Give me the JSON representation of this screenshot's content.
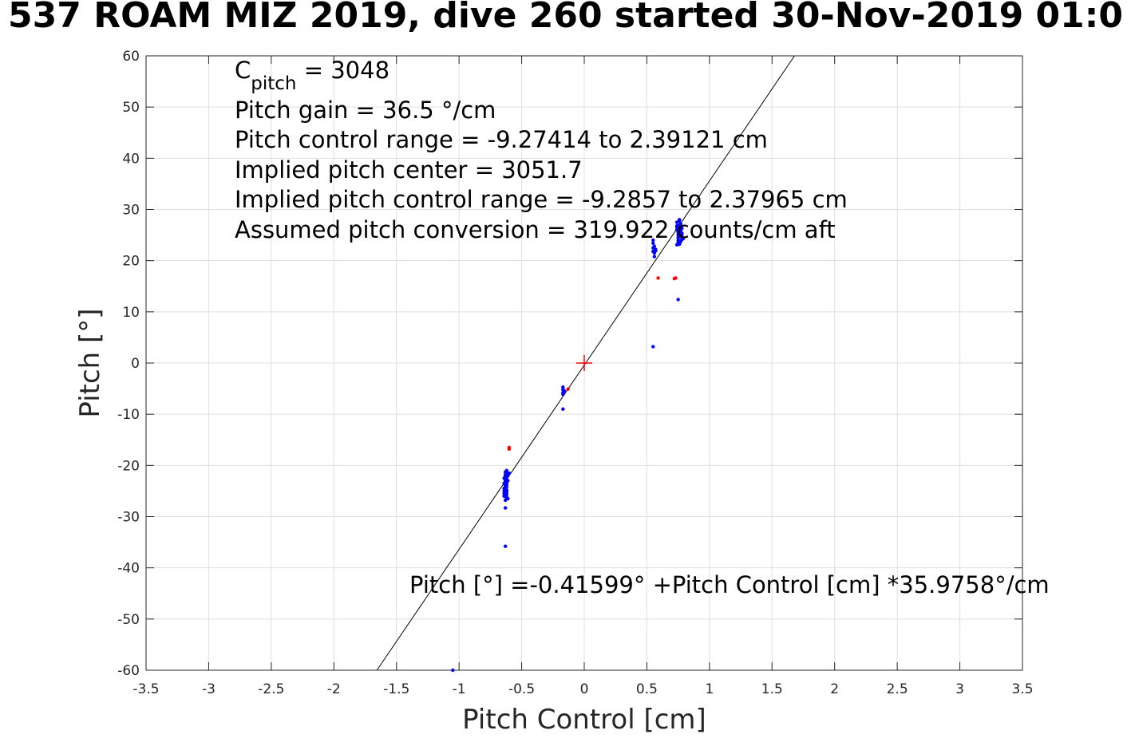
{
  "chart_data": {
    "type": "scatter",
    "title": "537 ROAM MIZ 2019, dive 260 started 30-Nov-2019 01:0",
    "xlabel": "Pitch Control [cm]",
    "ylabel": "Pitch [°]",
    "xlim": [
      -3.5,
      3.5
    ],
    "ylim": [
      -60,
      60
    ],
    "xticks": [
      -3.5,
      -3,
      -2.5,
      -2,
      -1.5,
      -1,
      -0.5,
      0,
      0.5,
      1,
      1.5,
      2,
      2.5,
      3,
      3.5
    ],
    "xtick_labels": [
      "-3.5",
      "-3",
      "-2.5",
      "-2",
      "-1.5",
      "-1",
      "-0.5",
      "0",
      "0.5",
      "1",
      "1.5",
      "2",
      "2.5",
      "3",
      "3.5"
    ],
    "yticks": [
      -60,
      -50,
      -40,
      -30,
      -20,
      -10,
      0,
      10,
      20,
      30,
      40,
      50,
      60
    ],
    "ytick_labels": [
      "-60",
      "-50",
      "-40",
      "-30",
      "-20",
      "-10",
      "0",
      "10",
      "20",
      "30",
      "40",
      "50",
      "60"
    ],
    "grid": true,
    "annotations": {
      "c_pitch_main": "C",
      "c_pitch_sub": "pitch",
      "c_pitch_value": " = 3048",
      "lines": [
        "Pitch gain = 36.5 °/cm",
        "Pitch control range = -9.27414 to 2.39121 cm",
        "Implied pitch center = 3051.7",
        "Implied pitch control range = -9.2857 to 2.37965 cm",
        "Assumed pitch conversion = 319.922 counts/cm aft"
      ],
      "fit_equation": "Pitch [°] =-0.41599° +Pitch Control [cm] *35.9758°/cm"
    },
    "fit_line": {
      "intercept": -0.41599,
      "slope": 35.9758,
      "color": "#000000"
    },
    "center_marker": {
      "x": 0,
      "y": 0,
      "color": "#ff0000"
    },
    "series": [
      {
        "color": "#0000ff",
        "x": [
          -0.62,
          -0.62,
          -0.63,
          -0.63,
          -0.63,
          -0.63,
          -0.63,
          -0.63,
          -0.62,
          -0.62,
          -0.62,
          -0.61,
          -0.61,
          -0.61,
          -0.6,
          -0.64,
          -0.64,
          -0.64,
          -0.64,
          -0.64,
          -0.64,
          -0.63,
          -0.63,
          -0.63,
          -0.63,
          -0.63,
          -0.62,
          -0.62,
          -0.62,
          -0.62,
          -0.62,
          -0.62,
          -0.62,
          -0.62,
          -0.62,
          -0.63,
          -0.63,
          -0.63,
          -0.17,
          -0.17,
          -0.17,
          -0.17,
          -0.16,
          -0.17,
          0.55,
          0.55,
          0.56,
          0.56,
          0.56,
          0.57,
          0.57,
          0.55,
          0.55,
          0.74,
          0.74,
          0.74,
          0.75,
          0.75,
          0.75,
          0.75,
          0.76,
          0.76,
          0.76,
          0.76,
          0.77,
          0.77,
          0.77,
          0.78,
          0.78,
          0.78,
          0.75,
          0.76,
          0.77,
          0.74,
          0.78,
          0.79,
          0.74,
          0.76,
          0.77,
          0.76,
          0.55,
          0.75,
          -1.05,
          -0.63
        ],
        "y": [
          -21,
          -21.5,
          -22,
          -22.5,
          -23,
          -23.5,
          -24,
          -24.5,
          -25,
          -25.5,
          -26,
          -26.5,
          -22,
          -23,
          -21.5,
          -22.5,
          -23.5,
          -24.5,
          -25,
          -25.5,
          -26,
          -22,
          -23,
          -24,
          -25,
          -21.8,
          -22.6,
          -23.4,
          -24.2,
          -25.1,
          -24.8,
          -23.8,
          -22.8,
          -21.6,
          -26.4,
          -26.8,
          -28.3,
          -21.3,
          -4.7,
          -5.2,
          -5.8,
          -6.1,
          -5.4,
          -9,
          22.5,
          21.8,
          22.8,
          21.5,
          20.8,
          22.2,
          21.9,
          23.4,
          24,
          27.5,
          26.8,
          26,
          25.5,
          25,
          24.5,
          24,
          27.8,
          27,
          26.2,
          25.2,
          24.7,
          23.9,
          25.9,
          26.3,
          25.4,
          24.1,
          23.6,
          23.2,
          27.2,
          26.5,
          25,
          24.3,
          23.1,
          28,
          23.7,
          26.6,
          3.2,
          12.4,
          -60,
          -35.8
        ]
      },
      {
        "color": "#ff0000",
        "x": [
          -0.6,
          -0.6,
          -0.13,
          0.59,
          0.72,
          0.73
        ],
        "y": [
          -16.5,
          -16.8,
          -5.1,
          16.6,
          16.5,
          16.6
        ]
      }
    ]
  }
}
